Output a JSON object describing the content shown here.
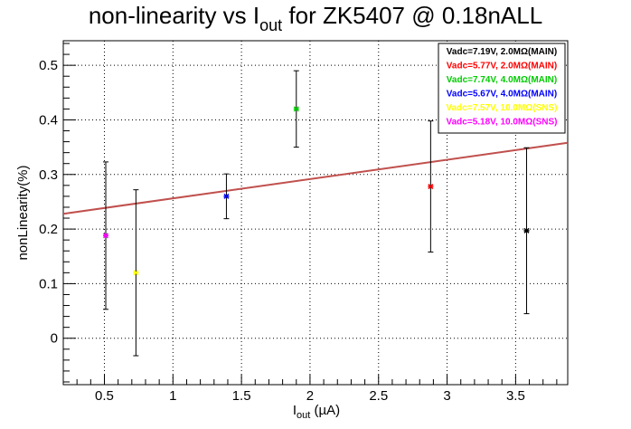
{
  "chart_data": {
    "type": "scatter",
    "title": {
      "prefix": "non-linearity vs I",
      "sub": "out",
      "suffix": " for ZK5407 @ 0.18nALL"
    },
    "xlabel": {
      "main": "I",
      "sub": "out",
      "rest": " (µA)"
    },
    "ylabel": "nonLinearity(%)",
    "xlim": [
      0.2,
      3.88
    ],
    "ylim": [
      -0.085,
      0.545
    ],
    "xticks": [
      0.5,
      1,
      1.5,
      2,
      2.5,
      3,
      3.5
    ],
    "xtick_labels": [
      "0.5",
      "1",
      "1.5",
      "2",
      "2.5",
      "3",
      "3.5"
    ],
    "yticks": [
      0,
      0.1,
      0.2,
      0.3,
      0.4,
      0.5
    ],
    "ytick_labels": [
      "0",
      "0.1",
      "0.2",
      "0.3",
      "0.4",
      "0.5"
    ],
    "grid": true,
    "legend_position": "top-right",
    "series": [
      {
        "name": "Vadc=7.19V, 2.0MΩ(MAIN)",
        "color": "#000000",
        "x": [
          3.58
        ],
        "y": [
          0.197
        ],
        "err": [
          0.152
        ]
      },
      {
        "name": "Vadc=5.77V, 2.0MΩ(MAIN)",
        "color": "#ff0000",
        "x": [
          2.88
        ],
        "y": [
          0.278
        ],
        "err": [
          0.12
        ]
      },
      {
        "name": "Vadc=7.74V, 4.0MΩ(MAIN)",
        "color": "#00cc00",
        "x": [
          1.9
        ],
        "y": [
          0.42
        ],
        "err": [
          0.07
        ]
      },
      {
        "name": "Vadc=5.67V, 4.0MΩ(MAIN)",
        "color": "#0000ff",
        "x": [
          1.39
        ],
        "y": [
          0.26
        ],
        "err": [
          0.041
        ]
      },
      {
        "name": "Vadc=7.57V, 10.0MΩ(SNS)",
        "color": "#ffff00",
        "x": [
          0.73
        ],
        "y": [
          0.12
        ],
        "err": [
          0.152
        ]
      },
      {
        "name": "Vadc=5.18V, 10.0MΩ(SNS)",
        "color": "#ff00ff",
        "x": [
          0.51
        ],
        "y": [
          0.188
        ],
        "err": [
          0.135
        ]
      }
    ],
    "fit": {
      "type": "linear",
      "color": "#c0504d",
      "x": [
        0.2,
        3.88
      ],
      "y": [
        0.228,
        0.358
      ]
    }
  }
}
